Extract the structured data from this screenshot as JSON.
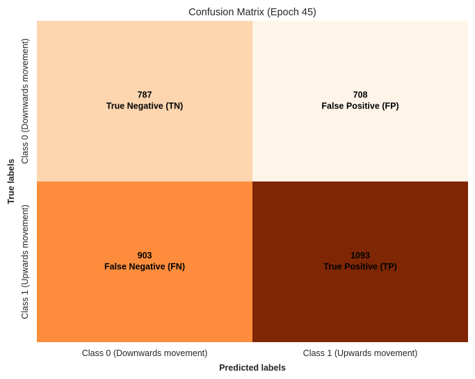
{
  "chart_data": {
    "type": "heatmap",
    "title": "Confusion Matrix (Epoch 45)",
    "xlabel": "Predicted labels",
    "ylabel": "True labels",
    "x_categories": [
      "Class 0 (Downwards movement)",
      "Class 1 (Upwards movement)"
    ],
    "y_categories": [
      "Class 0 (Downwards movement)",
      "Class 1 (Upwards movement)"
    ],
    "colormap": "Oranges",
    "colorbar": false,
    "cells": [
      {
        "row": 0,
        "col": 0,
        "value": 787,
        "label": "True Negative (TN)",
        "color": "#fdd6b0"
      },
      {
        "row": 0,
        "col": 1,
        "value": 708,
        "label": "False Positive (FP)",
        "color": "#fff4e8"
      },
      {
        "row": 1,
        "col": 0,
        "value": 903,
        "label": "False Negative (FN)",
        "color": "#fd8d3c"
      },
      {
        "row": 1,
        "col": 1,
        "value": 1093,
        "label": "True Positive (TP)",
        "color": "#7f2704"
      }
    ]
  }
}
